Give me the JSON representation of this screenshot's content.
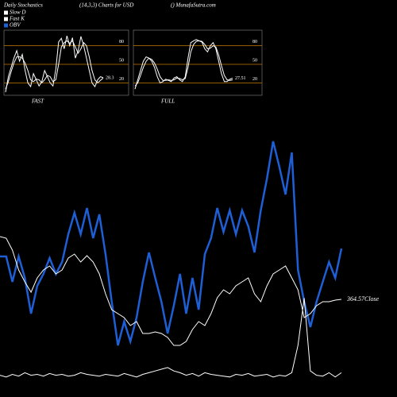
{
  "header": {
    "title": "Daily Stochastics",
    "subtitle": "(14,3,3) Charts for USD",
    "site": "() MunafaSutra.com"
  },
  "legend": [
    {
      "name": "Slow  D",
      "color": "#ffffff"
    },
    {
      "name": "Fast K",
      "color": "#ffffff"
    },
    {
      "name": "OBV",
      "color": "#1e5fd6"
    }
  ],
  "chart_data": [
    {
      "type": "line",
      "title": "FAST",
      "ylim": [
        0,
        100
      ],
      "yticks": [
        80,
        50,
        20
      ],
      "tick_color": "#c87a00",
      "series": [
        {
          "color": "#ffffff",
          "values": [
            5,
            30,
            45,
            60,
            72,
            55,
            66,
            40,
            20,
            14,
            35,
            25,
            15,
            22,
            40,
            30,
            20,
            15,
            42,
            86,
            92,
            75,
            96,
            80,
            93,
            60,
            72,
            95,
            80,
            60,
            40,
            20,
            14,
            25,
            30,
            28.3
          ]
        },
        {
          "color": "#ffffff",
          "values": [
            10,
            22,
            38,
            52,
            62,
            62,
            60,
            52,
            40,
            25,
            22,
            26,
            25,
            20,
            25,
            32,
            30,
            22,
            25,
            50,
            78,
            85,
            88,
            84,
            88,
            78,
            68,
            75,
            85,
            80,
            62,
            40,
            25,
            20,
            24,
            28
          ]
        }
      ]
    },
    {
      "type": "line",
      "title": "FULL",
      "ylim": [
        0,
        100
      ],
      "yticks": [
        80,
        50,
        20
      ],
      "tick_color": "#c87a00",
      "series": [
        {
          "color": "#ffffff",
          "values": [
            10,
            25,
            40,
            55,
            62,
            60,
            55,
            45,
            30,
            20,
            22,
            26,
            24,
            22,
            28,
            30,
            25,
            22,
            30,
            60,
            85,
            88,
            90,
            88,
            86,
            75,
            70,
            80,
            85,
            75,
            55,
            35,
            22,
            22,
            26,
            27.51
          ]
        },
        {
          "color": "#ffffff",
          "values": [
            15,
            20,
            32,
            45,
            55,
            60,
            58,
            52,
            42,
            30,
            24,
            24,
            25,
            24,
            25,
            28,
            27,
            25,
            27,
            45,
            70,
            82,
            87,
            88,
            87,
            82,
            75,
            76,
            80,
            78,
            65,
            48,
            32,
            25,
            24,
            25
          ]
        }
      ]
    },
    {
      "type": "line",
      "ylim": [
        0,
        320
      ],
      "close_label": "364.57Close",
      "series": [
        {
          "color": "#1e5fd6",
          "values": [
            157,
            157,
            125,
            157,
            130,
            85,
            120,
            135,
            155,
            135,
            150,
            185,
            212,
            185,
            218,
            180,
            210,
            160,
            100,
            45,
            75,
            50,
            80,
            125,
            162,
            130,
            100,
            60,
            95,
            135,
            85,
            130,
            90,
            160,
            180,
            218,
            188,
            215,
            185,
            215,
            195,
            162,
            215,
            255,
            302,
            270,
            235,
            288,
            140,
            100,
            68,
            100,
            125,
            150,
            130,
            167
          ]
        },
        {
          "color": "#ffffff",
          "values": [
            182,
            180,
            165,
            140,
            125,
            112,
            130,
            140,
            145,
            135,
            140,
            155,
            160,
            150,
            158,
            150,
            135,
            110,
            90,
            85,
            80,
            70,
            75,
            60,
            60,
            62,
            60,
            55,
            45,
            45,
            50,
            65,
            75,
            70,
            85,
            105,
            115,
            110,
            120,
            125,
            130,
            110,
            100,
            120,
            135,
            140,
            145,
            130,
            115,
            80,
            85,
            95,
            100,
            100,
            102,
            103
          ]
        }
      ]
    },
    {
      "type": "line",
      "ylim": [
        0,
        100
      ],
      "series": [
        {
          "color": "#ffffff",
          "values": [
            5,
            3,
            6,
            4,
            8,
            5,
            6,
            4,
            7,
            5,
            6,
            4,
            5,
            8,
            6,
            5,
            4,
            6,
            5,
            4,
            7,
            5,
            3,
            6,
            8,
            10,
            12,
            14,
            10,
            8,
            5,
            7,
            4,
            8,
            6,
            5,
            4,
            3,
            6,
            5,
            7,
            4,
            5,
            6,
            3,
            5,
            4,
            8,
            40,
            95,
            10,
            5,
            4,
            8,
            3,
            8
          ]
        }
      ]
    }
  ]
}
